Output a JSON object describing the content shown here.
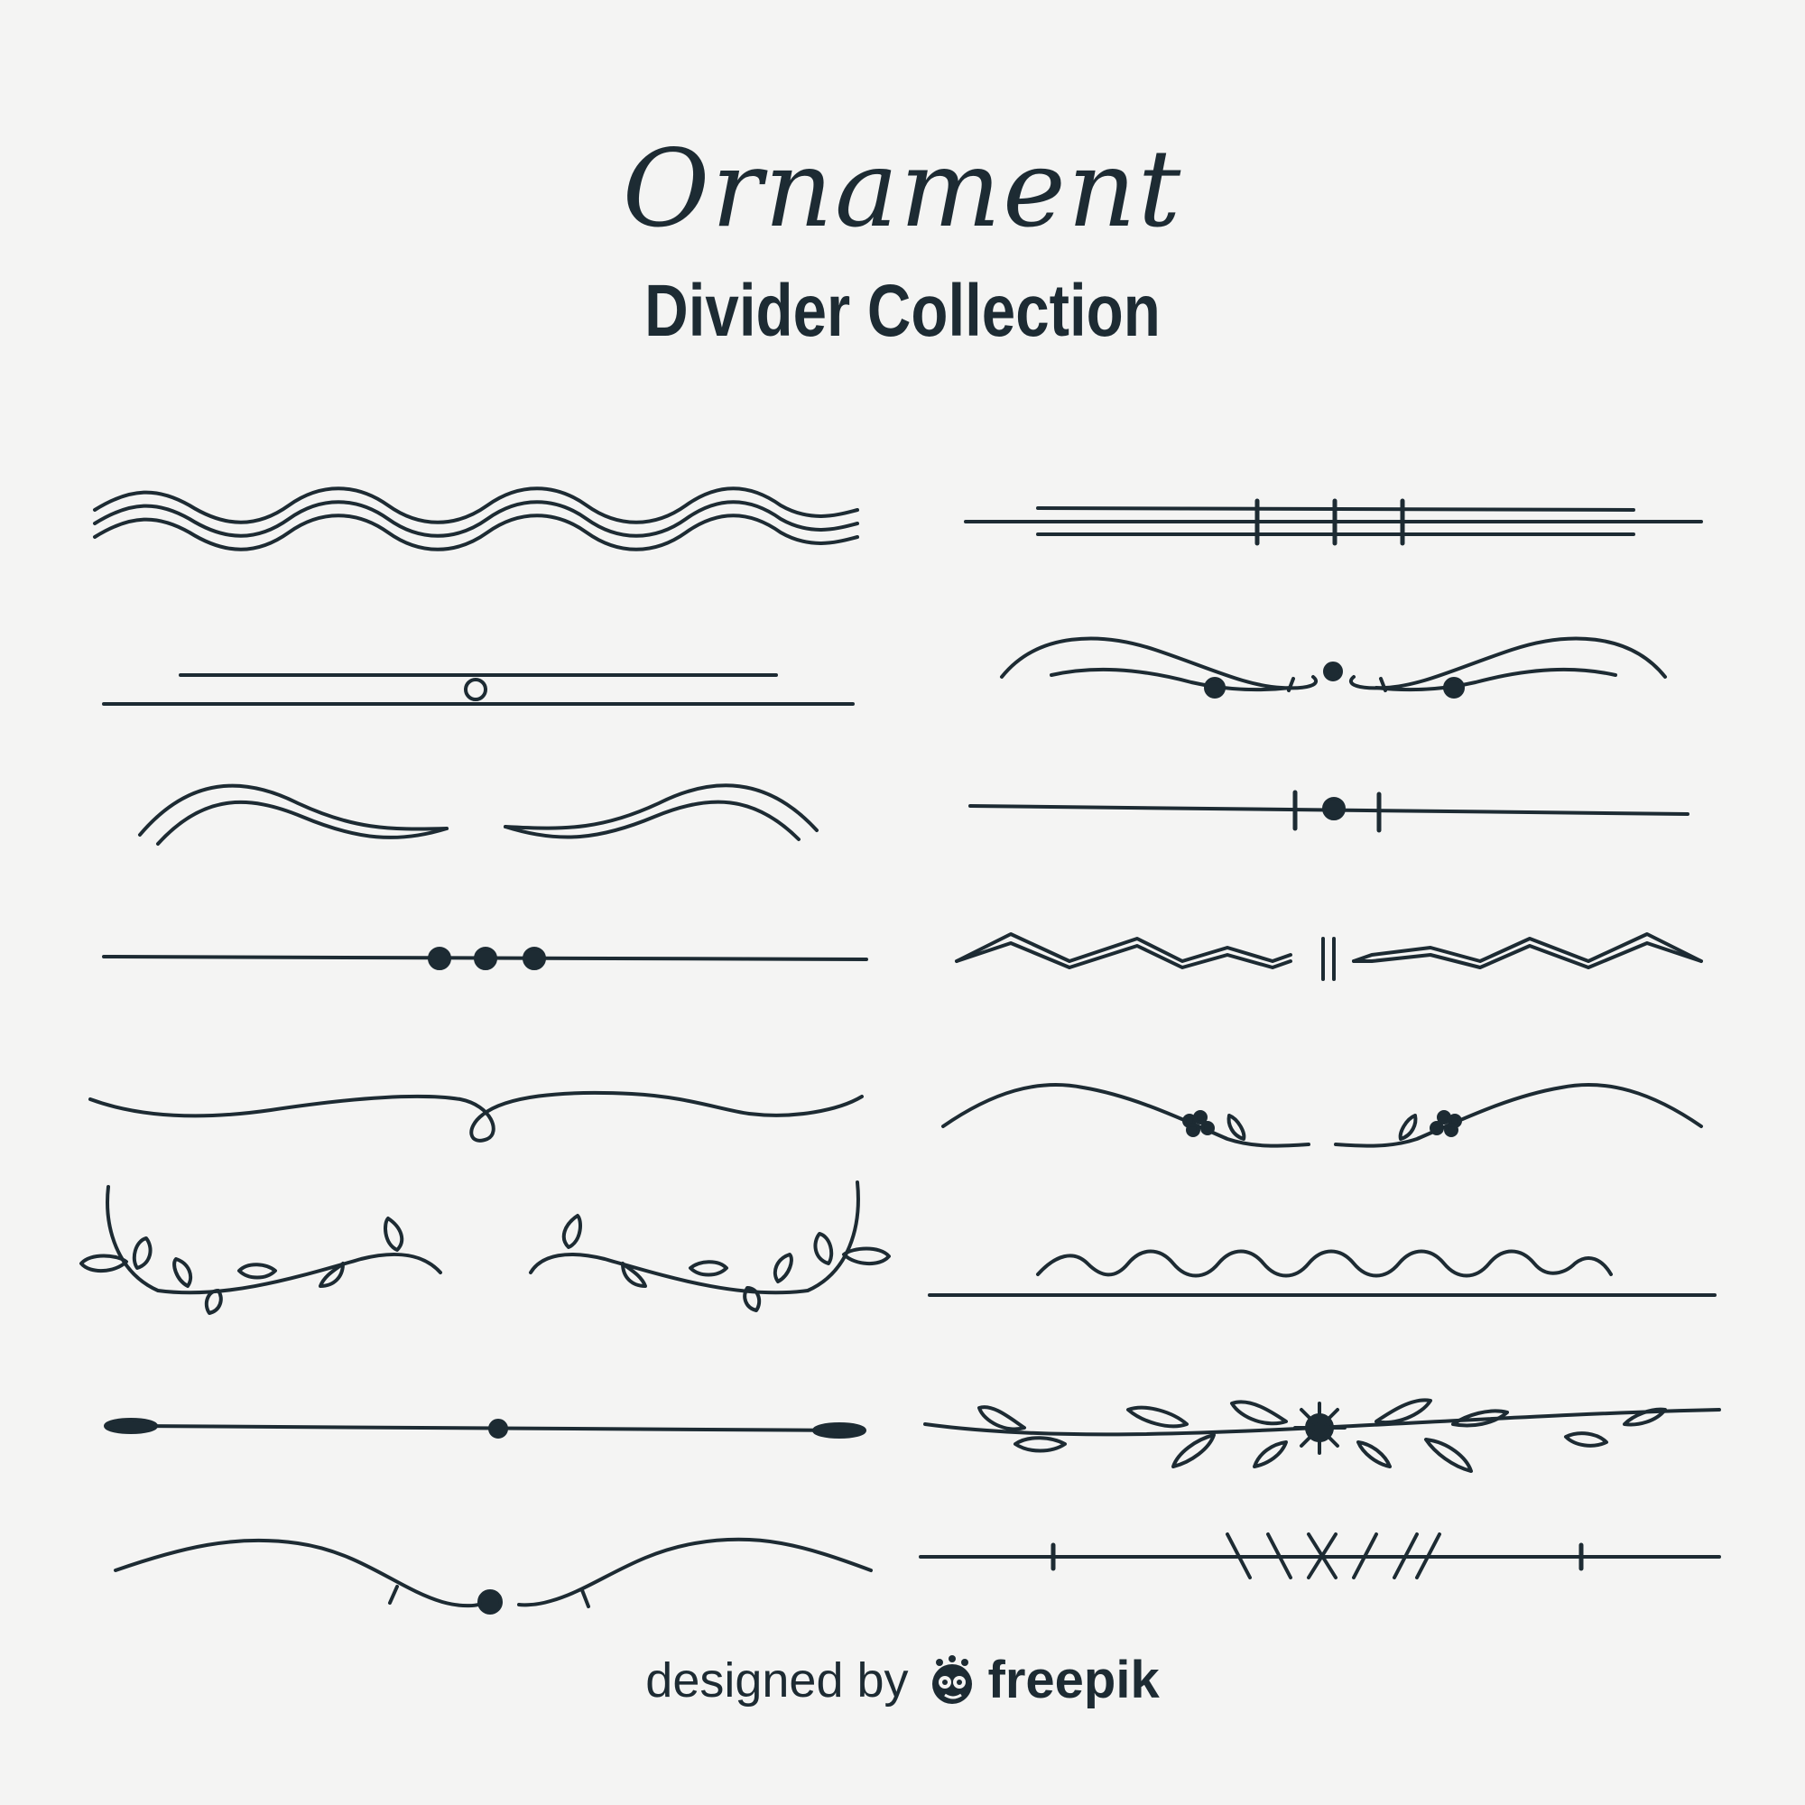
{
  "title": "Ornament",
  "subtitle": "Divider Collection",
  "credit": {
    "designed_by": "designed by",
    "brand": "freepik",
    "logo_icon": "freepik-logo-icon"
  },
  "colors": {
    "background": "#f4f4f3",
    "ink": "#1d2b33"
  },
  "dividers_left": [
    "wave-triple-divider",
    "line-ring-divider",
    "swoosh-pair-divider",
    "line-three-dots-divider",
    "line-loop-divider",
    "leaf-branch-divider",
    "line-end-caps-divider",
    "arc-dot-divider"
  ],
  "dividers_right": [
    "triple-line-bars-divider",
    "swirl-dots-divider",
    "line-dot-bars-divider",
    "zigzag-divider",
    "floral-arc-divider",
    "wave-line-divider",
    "leaf-flower-divider",
    "cross-stitch-divider"
  ]
}
